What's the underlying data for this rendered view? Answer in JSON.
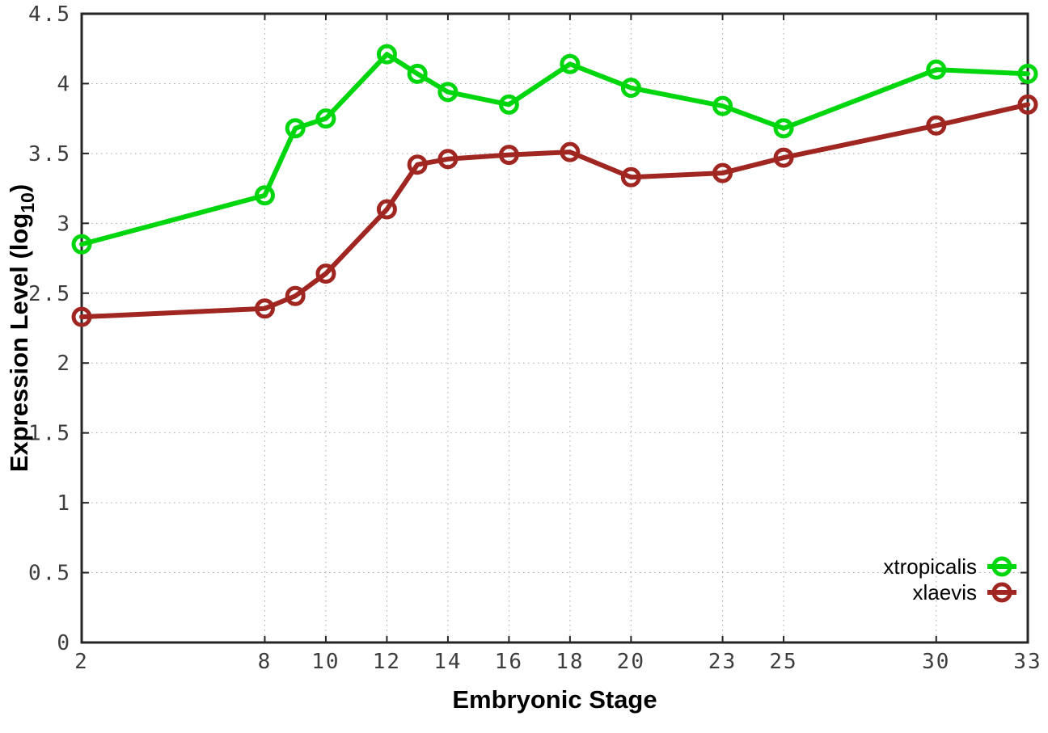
{
  "chart_data": {
    "type": "line",
    "title": "",
    "xlabel": "Embryonic Stage",
    "ylabel": {
      "text": "Expression Level (log",
      "subscript": "10",
      "suffix": ")"
    },
    "x": [
      2,
      8,
      9,
      10,
      12,
      13,
      14,
      16,
      18,
      20,
      23,
      25,
      30,
      33
    ],
    "series": [
      {
        "name": "xtropicalis",
        "color": "#00d60e",
        "marker": "open-circle",
        "values": [
          2.85,
          3.2,
          3.68,
          3.75,
          4.21,
          4.07,
          3.94,
          3.85,
          4.14,
          3.97,
          3.84,
          3.68,
          4.1,
          4.07
        ]
      },
      {
        "name": "xlaevis",
        "color": "#a02622",
        "marker": "open-circle",
        "values": [
          2.33,
          2.39,
          2.48,
          2.64,
          3.1,
          3.42,
          3.46,
          3.49,
          3.51,
          3.33,
          3.36,
          3.47,
          3.7,
          3.85
        ]
      }
    ],
    "xlim": [
      2,
      33
    ],
    "ylim": [
      0,
      4.5
    ],
    "xticks": {
      "values": [
        2,
        8,
        10,
        12,
        14,
        16,
        18,
        20,
        23,
        25,
        30,
        33
      ],
      "labels": [
        "2",
        "8",
        "10",
        "12",
        "14",
        "16",
        "18",
        "20",
        "23",
        "25",
        "30",
        "33"
      ]
    },
    "yticks": {
      "values": [
        0,
        0.5,
        1,
        1.5,
        2,
        2.5,
        3,
        3.5,
        4,
        4.5
      ],
      "labels": [
        "0",
        "0.5",
        "1",
        "1.5",
        "2",
        "2.5",
        "3",
        "3.5",
        "4",
        "4.5"
      ]
    },
    "grid": "dotted",
    "legend_position": "bottom-right-inside",
    "colors": {
      "axis": "#262626",
      "grid": "#a8a8a8",
      "tick_label": "#3d3d3d",
      "background": "#ffffff"
    }
  }
}
